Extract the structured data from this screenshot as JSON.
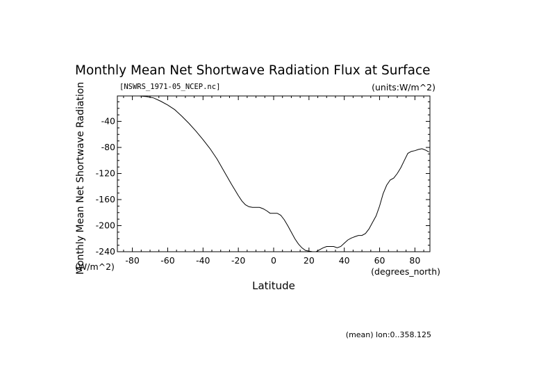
{
  "chart_data": {
    "type": "line",
    "title": "Monthly Mean Net Shortwave Radiation Flux at Surface",
    "file_label": "[NSWRS_1971-05_NCEP.nc]",
    "units_label": "(units:W/m^2)",
    "ylabel": "Monthly Mean Net Shortwave Radiation",
    "ylabel_units": "(W/m^2)",
    "xlabel": "Latitude",
    "xunits": "(degrees_north)",
    "footer": "(mean) lon:0..358.125",
    "xlim": [
      -88.5,
      88.5
    ],
    "ylim": [
      -240,
      -1
    ],
    "x_ticks": [
      -80,
      -60,
      -40,
      -20,
      0,
      20,
      40,
      60,
      80
    ],
    "y_ticks": [
      -40,
      -80,
      -120,
      -160,
      -200,
      -240
    ],
    "x_tick_labels": [
      "-80",
      "-60",
      "-40",
      "-20",
      "0",
      "20",
      "40",
      "60",
      "80"
    ],
    "y_tick_labels": [
      "-40",
      "-80",
      "-120",
      "-160",
      "-200",
      "-240"
    ],
    "series": [
      {
        "x": [
          -88,
          -84,
          -80,
          -76,
          -72,
          -68,
          -64,
          -60,
          -56,
          -52,
          -48,
          -44,
          -40,
          -36,
          -32,
          -28,
          -24,
          -20,
          -18,
          -16,
          -14,
          -12,
          -10,
          -8,
          -6,
          -4,
          -2,
          0,
          2,
          4,
          6,
          8,
          10,
          12,
          14,
          16,
          18,
          20,
          22,
          24,
          26,
          28,
          30,
          32,
          34,
          36,
          38,
          40,
          42,
          44,
          46,
          48,
          50,
          52,
          54,
          56,
          58,
          60,
          62,
          64,
          66,
          68,
          70,
          72,
          74,
          76,
          78,
          80,
          82,
          84,
          86,
          88
        ],
        "y": [
          -1,
          -1,
          -1,
          -1,
          -2,
          -4,
          -9,
          -15,
          -22,
          -32,
          -43,
          -55,
          -68,
          -82,
          -98,
          -117,
          -136,
          -154,
          -162,
          -168,
          -171,
          -172,
          -172,
          -172,
          -174,
          -177,
          -181,
          -181,
          -181,
          -184,
          -191,
          -200,
          -210,
          -220,
          -228,
          -234,
          -238,
          -239,
          -240,
          -240,
          -237,
          -234,
          -232,
          -232,
          -232,
          -234,
          -232,
          -227,
          -222,
          -219,
          -217,
          -215,
          -215,
          -212,
          -205,
          -195,
          -185,
          -170,
          -151,
          -138,
          -130,
          -127,
          -120,
          -111,
          -100,
          -89,
          -86,
          -85,
          -83,
          -82,
          -84,
          -87
        ]
      }
    ]
  }
}
